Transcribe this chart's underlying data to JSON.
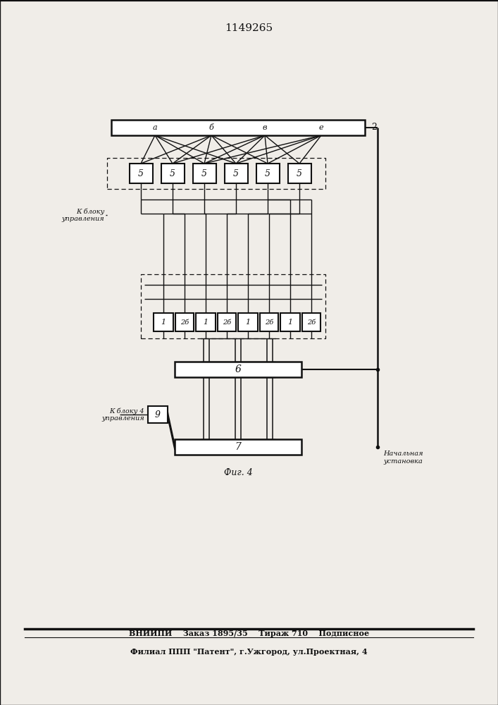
{
  "title": "1149265",
  "fig_label": "Фиг. 4",
  "footer_line1": "ВНИИПИ    Заказ 1895/35    Тираж 710    Подписное",
  "footer_line2": "Филиал ППП \"Патент\", г.Ужгород, ул.Проектная, 4",
  "bg_color": "#f0ede8",
  "line_color": "#111111",
  "bus_inner_labels": [
    "а",
    "б",
    "в",
    "е"
  ],
  "bus_right_label": "2",
  "block5_text": "5",
  "block1_text": "1",
  "block26_text": "2б",
  "block6_text": "6",
  "block7_text": "7",
  "block9_text": "9",
  "label_k_bloku": "К блоку\nуправления",
  "label_k_bloku4": "К блоку 4\nуправления",
  "label_nachalnoye": "Начальная\nустановка"
}
